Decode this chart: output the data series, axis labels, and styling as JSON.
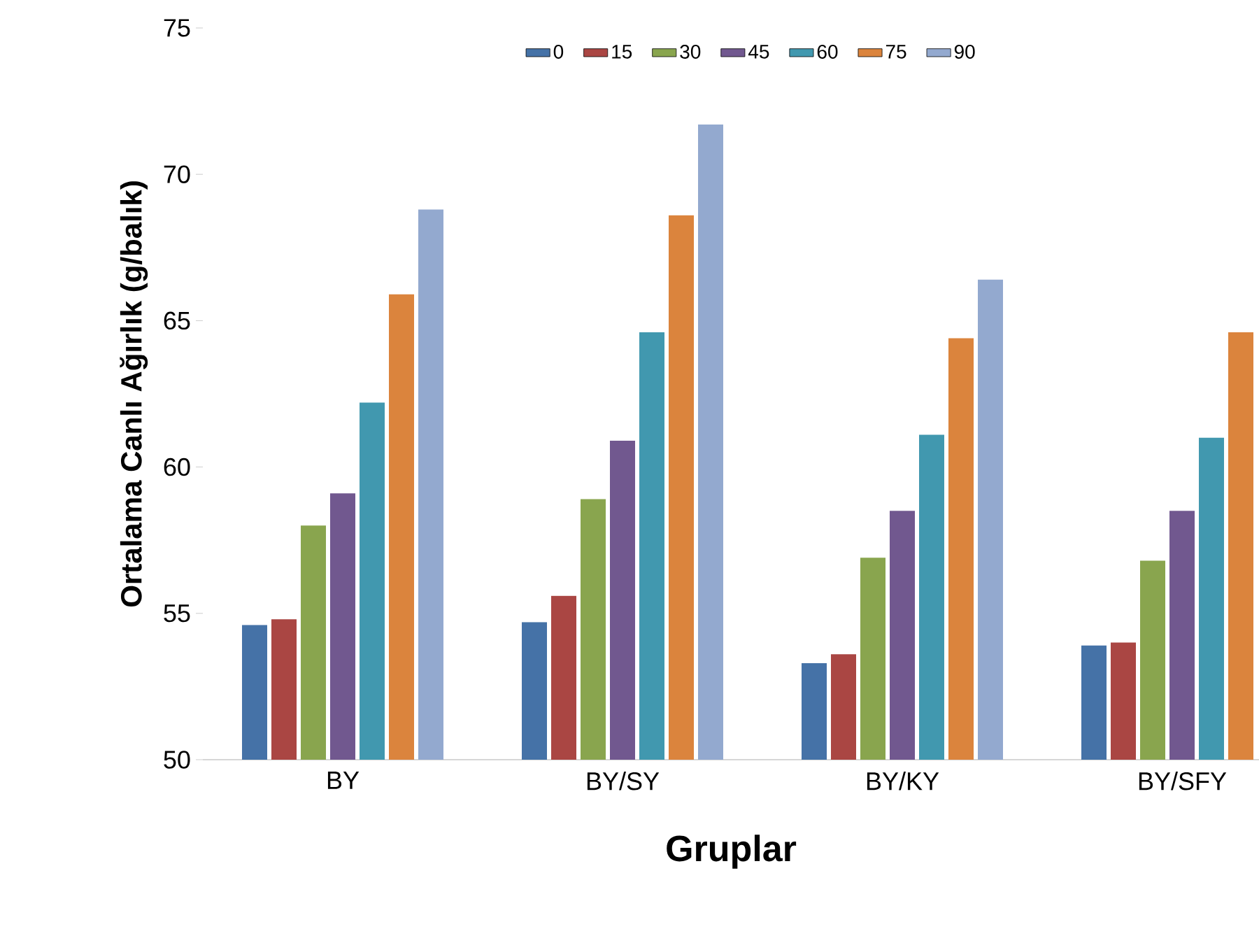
{
  "chart_data": {
    "type": "bar",
    "xlabel": "Gruplar",
    "ylabel": "Ortalama Canlı Ağırlık (g/balık)",
    "categories": [
      "BY",
      "BY/SY",
      "BY/KY",
      "BY/SFY"
    ],
    "series": [
      {
        "name": "0",
        "color": "#4572a7",
        "values": [
          54.6,
          54.7,
          53.3,
          53.9
        ]
      },
      {
        "name": "15",
        "color": "#aa4643",
        "values": [
          54.8,
          55.6,
          53.6,
          54.0
        ]
      },
      {
        "name": "30",
        "color": "#89a54e",
        "values": [
          58.0,
          58.9,
          56.9,
          56.8
        ]
      },
      {
        "name": "45",
        "color": "#71588f",
        "values": [
          59.1,
          60.9,
          58.5,
          58.5
        ]
      },
      {
        "name": "60",
        "color": "#4198af",
        "values": [
          62.2,
          64.6,
          61.1,
          61.0
        ]
      },
      {
        "name": "75",
        "color": "#db843d",
        "values": [
          65.9,
          68.6,
          64.4,
          64.6
        ]
      },
      {
        "name": "90",
        "color": "#93a9cf",
        "values": [
          68.8,
          71.7,
          66.4,
          null
        ]
      }
    ],
    "ylim": [
      50,
      75
    ],
    "yticks": [
      50,
      55,
      60,
      65,
      70,
      75
    ],
    "legend": "top",
    "grid": false
  }
}
